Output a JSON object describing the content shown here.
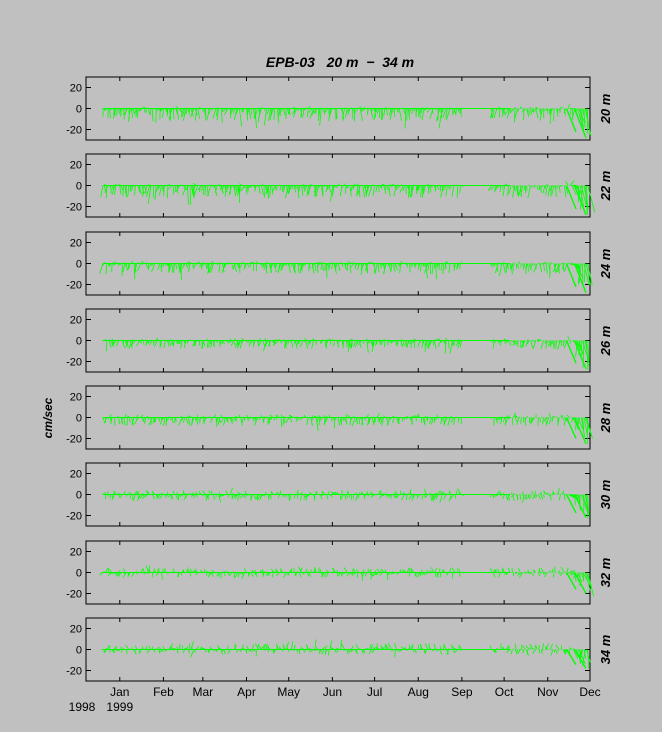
{
  "chart_data": {
    "type": "line",
    "title": "EPB-03   20 m  −  34 m",
    "ylabel": "cm/sec",
    "ylim": [
      -30,
      30
    ],
    "yticks": [
      20,
      0,
      -20
    ],
    "x_tick_labels": [
      "Jan",
      "Feb",
      "Mar",
      "Apr",
      "May",
      "Jun",
      "Jul",
      "Aug",
      "Sep",
      "Oct",
      "Nov",
      "Dec"
    ],
    "x_tick_dates": [
      "1999-01-01",
      "1999-02-01",
      "1999-03-01",
      "1999-04-01",
      "1999-05-01",
      "1999-06-01",
      "1999-07-01",
      "1999-08-01",
      "1999-09-01",
      "1999-10-01",
      "1999-11-01",
      "1999-12-01"
    ],
    "x_year_labels": [
      "1998",
      "1999"
    ],
    "xlim": [
      "1998-12-08",
      "1999-12-01"
    ],
    "series_color": "#00ff00",
    "panels": [
      {
        "depth_label": "20 m",
        "typical_range": [
          -12,
          2
        ],
        "gap": [
          "1999-09-01",
          "1999-09-22"
        ],
        "end_trend": -28
      },
      {
        "depth_label": "22 m",
        "typical_range": [
          -12,
          2
        ],
        "gap": [
          "1999-09-01",
          "1999-09-22"
        ],
        "end_trend": -28
      },
      {
        "depth_label": "24 m",
        "typical_range": [
          -10,
          2
        ],
        "gap": [
          "1999-09-01",
          "1999-09-22"
        ],
        "end_trend": -28
      },
      {
        "depth_label": "26 m",
        "typical_range": [
          -8,
          2
        ],
        "gap": [
          "1999-09-01",
          "1999-09-22"
        ],
        "end_trend": -27
      },
      {
        "depth_label": "28 m",
        "typical_range": [
          -8,
          3
        ],
        "gap": [
          "1999-09-01",
          "1999-09-22"
        ],
        "end_trend": -25
      },
      {
        "depth_label": "30 m",
        "typical_range": [
          -6,
          4
        ],
        "gap": [
          "1999-09-01",
          "1999-09-22"
        ],
        "end_trend": -22
      },
      {
        "depth_label": "32 m",
        "typical_range": [
          -5,
          5
        ],
        "gap": [
          "1999-09-01",
          "1999-09-22"
        ],
        "end_trend": -20
      },
      {
        "depth_label": "34 m",
        "typical_range": [
          -5,
          6
        ],
        "gap": [
          "1999-09-01",
          "1999-09-22"
        ],
        "end_trend": -18
      }
    ]
  }
}
